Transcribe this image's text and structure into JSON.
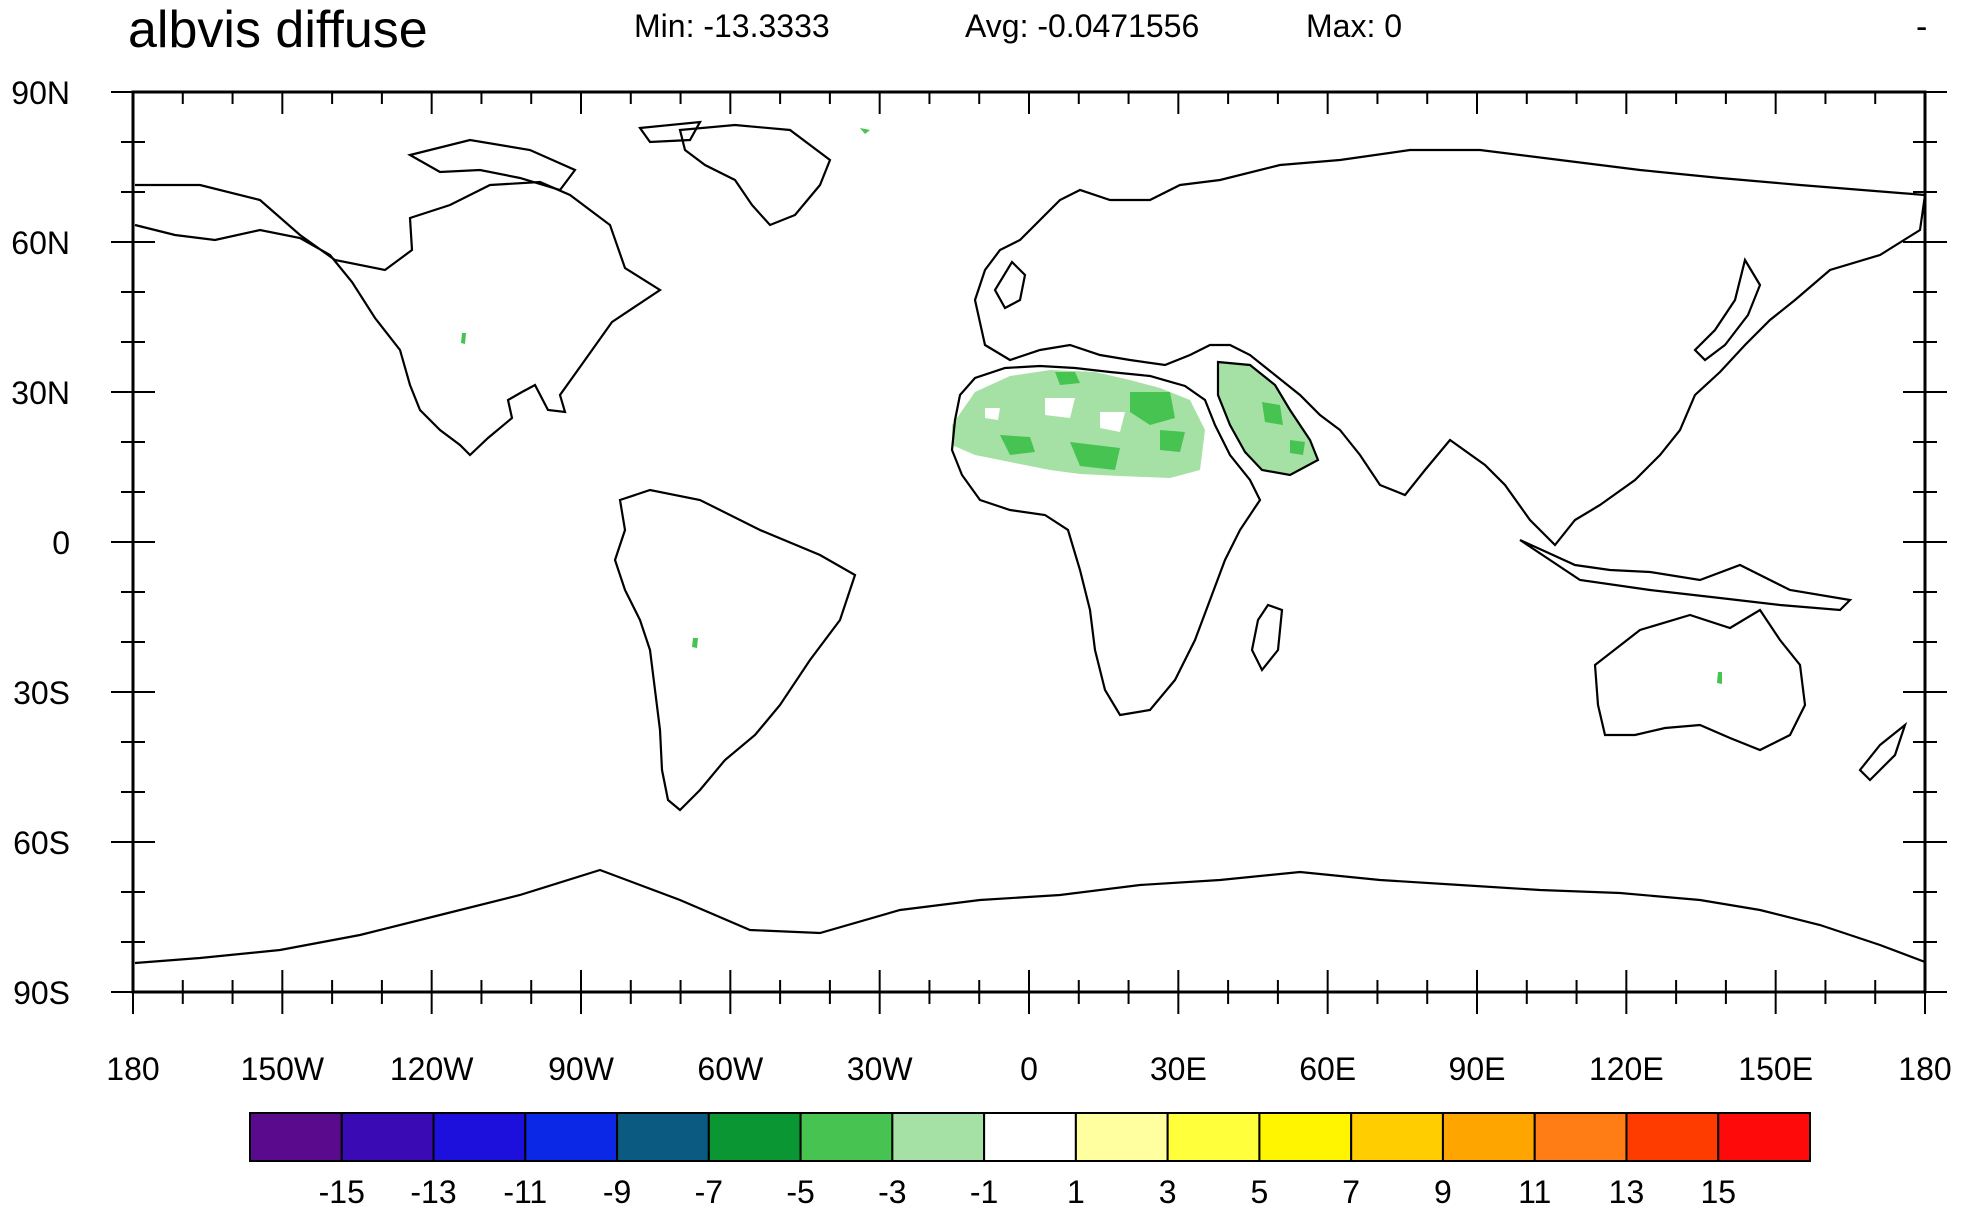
{
  "title": "albvis diffuse",
  "stats": {
    "min": "Min: -13.3333",
    "avg": "Avg: -0.0471556",
    "max": "Max: 0"
  },
  "corner_mark": "-",
  "lat_labels": [
    "90N",
    "60N",
    "30N",
    "0",
    "30S",
    "60S",
    "90S"
  ],
  "lon_labels": [
    "180",
    "150W",
    "120W",
    "90W",
    "60W",
    "30W",
    "0",
    "30E",
    "60E",
    "90E",
    "120E",
    "150E",
    "180"
  ],
  "legend": {
    "colors": [
      "#5a0a8c",
      "#3a0ab4",
      "#1e10dc",
      "#0a28e6",
      "#0a5a82",
      "#0a9632",
      "#46c350",
      "#a5e1a5",
      "#ffffff",
      "#ffffa0",
      "#ffff3c",
      "#fff500",
      "#ffcd00",
      "#ffa500",
      "#ff7d14",
      "#ff3c00",
      "#ff0a0a"
    ],
    "labels": [
      "-15",
      "-13",
      "-11",
      "-9",
      "-7",
      "-5",
      "-3",
      "-1",
      "1",
      "3",
      "5",
      "7",
      "9",
      "11",
      "13",
      "15"
    ]
  }
}
